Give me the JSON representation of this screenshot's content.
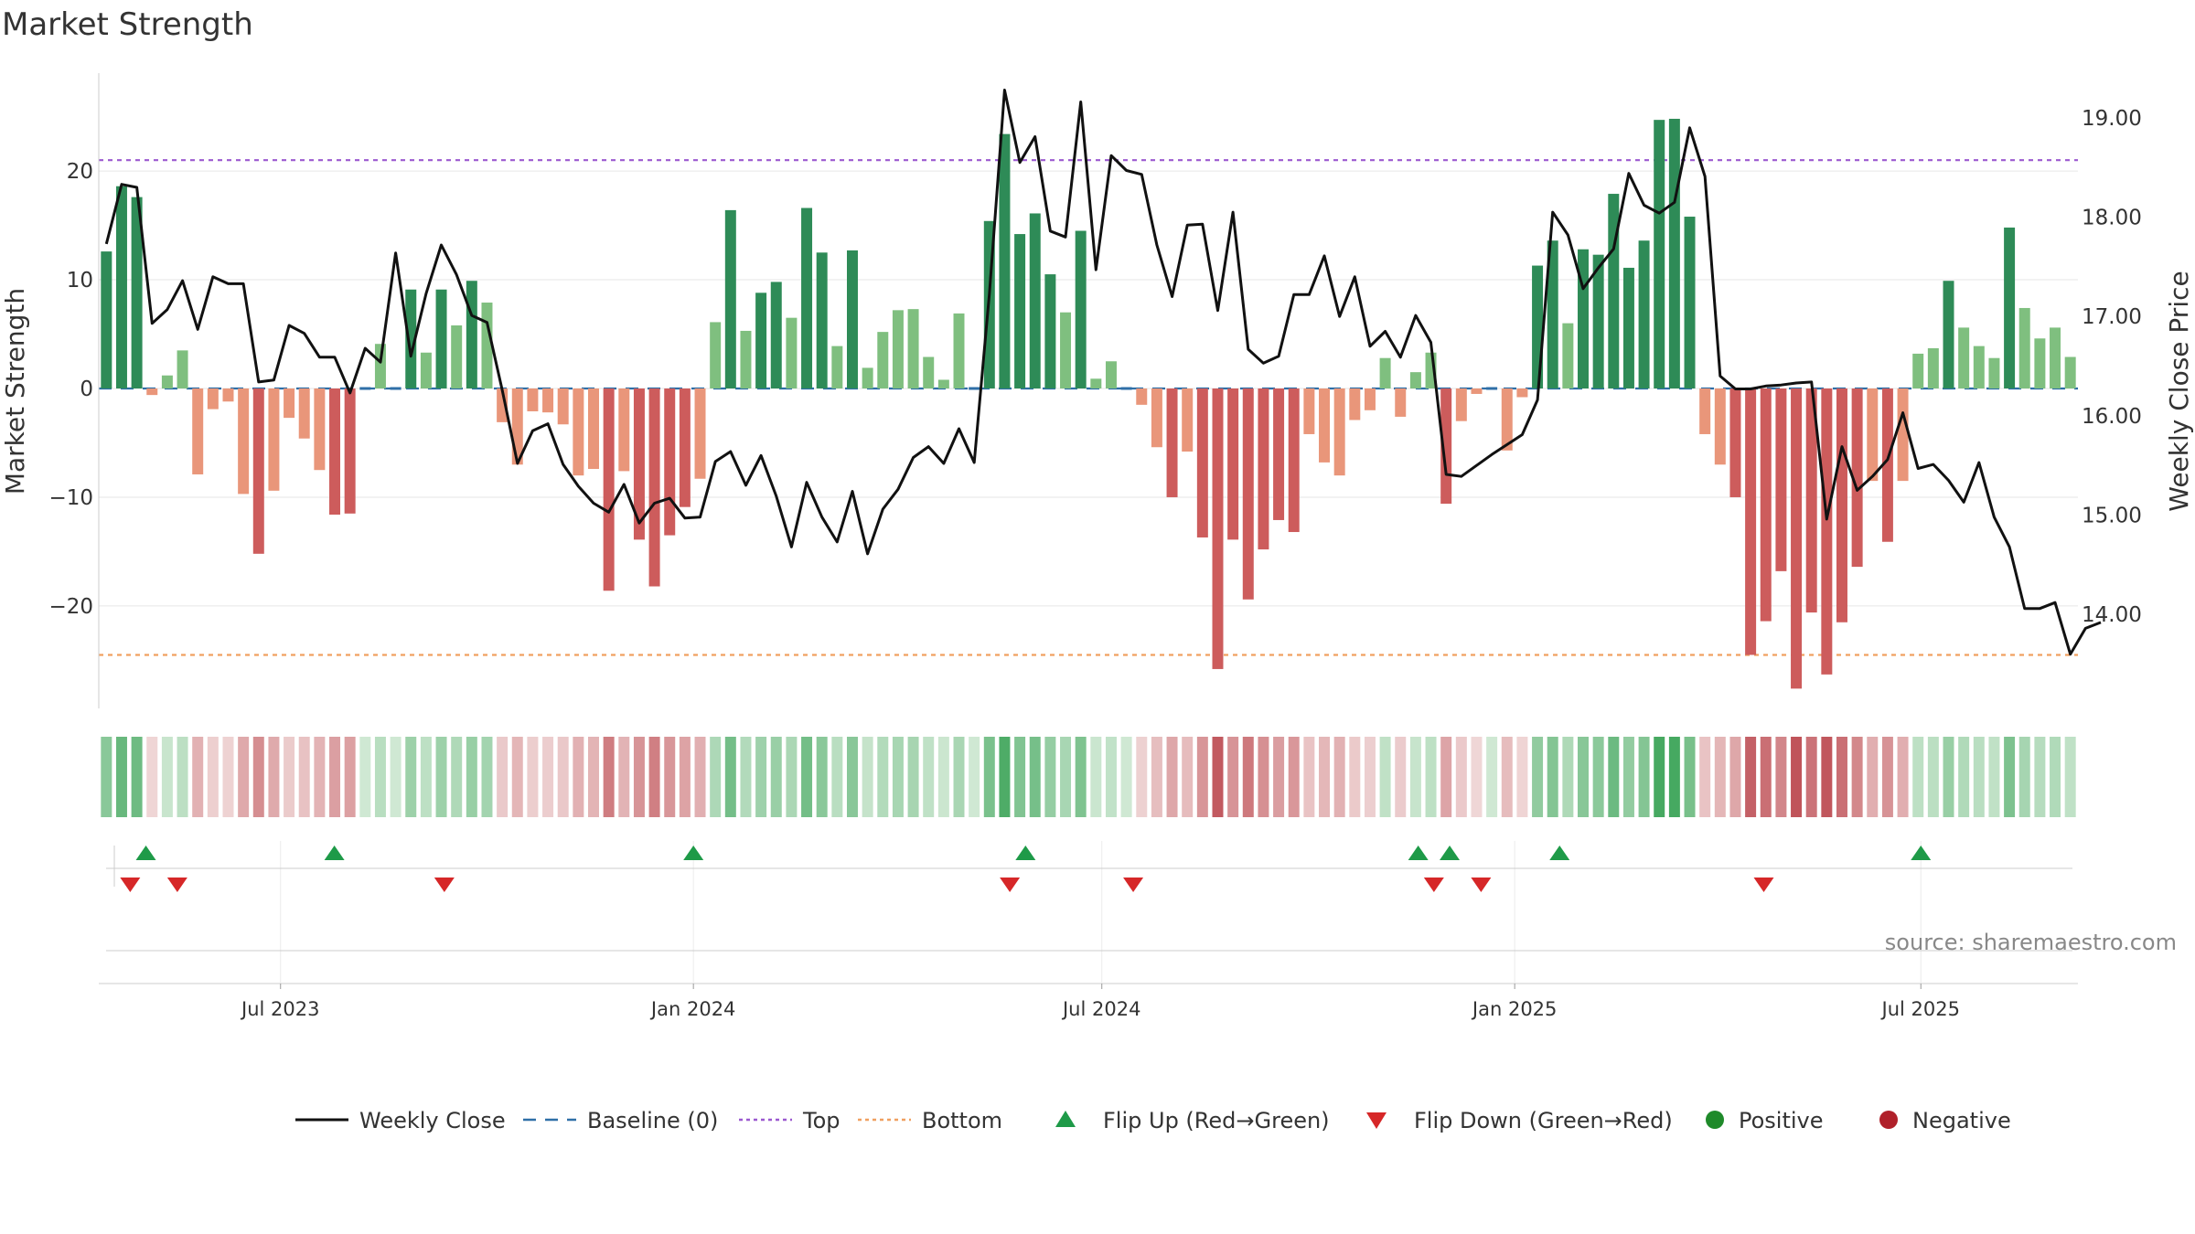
{
  "chart_data": {
    "type": "bar",
    "title": "Market Strength",
    "y_left_label": "Market Strength",
    "y_right_label": "Weekly Close Price",
    "y_left_range": [
      -29,
      29
    ],
    "y_right_range": [
      13.1,
      19.45
    ],
    "y_left_ticks": [
      "20",
      "10",
      "0",
      "−10",
      "−20"
    ],
    "y_left_tick_values": [
      20,
      10,
      0,
      -10,
      -20
    ],
    "y_right_ticks": [
      "19.00",
      "18.00",
      "17.00",
      "16.00",
      "15.00",
      "14.00"
    ],
    "y_right_tick_values": [
      19,
      18,
      17,
      16,
      15,
      14
    ],
    "x_start_date": "2023-04-11",
    "x_end_date": "2025-09-09",
    "x_ticks": [
      {
        "label": "Jul 2023",
        "date": "2023-07-01"
      },
      {
        "label": "Jan 2024",
        "date": "2024-01-01"
      },
      {
        "label": "Jul 2024",
        "date": "2024-07-01"
      },
      {
        "label": "Jan 2025",
        "date": "2025-01-01"
      },
      {
        "label": "Jul 2025",
        "date": "2025-07-01"
      }
    ],
    "top_level": 21,
    "bottom_level": -24.5,
    "strength": [
      12.6,
      18.6,
      17.6,
      -0.6,
      1.2,
      3.5,
      -7.9,
      -1.9,
      -1.2,
      -9.7,
      -15.2,
      -9.4,
      -2.7,
      -4.6,
      -7.5,
      -11.6,
      -11.5,
      0.0,
      4.1,
      0.0,
      9.1,
      3.3,
      9.1,
      5.8,
      9.9,
      7.9,
      -3.1,
      -7.0,
      -2.1,
      -2.2,
      -3.3,
      -8.0,
      -7.4,
      -18.6,
      -7.6,
      -13.9,
      -18.2,
      -13.5,
      -10.9,
      -8.3,
      6.1,
      16.4,
      5.3,
      8.8,
      9.8,
      6.5,
      16.6,
      12.5,
      3.9,
      12.7,
      1.9,
      5.2,
      7.2,
      7.3,
      2.9,
      0.8,
      6.9,
      0.0,
      15.4,
      23.4,
      14.2,
      16.1,
      10.5,
      7.0,
      14.5,
      0.9,
      2.5,
      0.0,
      -1.5,
      -5.4,
      -10.0,
      -5.8,
      -13.7,
      -25.8,
      -13.9,
      -19.4,
      -14.8,
      -12.1,
      -13.2,
      -4.2,
      -6.8,
      -8.0,
      -2.9,
      -2.0,
      2.8,
      -2.6,
      1.5,
      3.3,
      -10.6,
      -3.0,
      -0.5,
      0.0,
      -5.7,
      -0.8,
      11.3,
      13.6,
      6.0,
      12.8,
      12.3,
      17.9,
      11.1,
      13.6,
      24.7,
      24.8,
      15.8,
      -4.2,
      -7.0,
      -10.0,
      -24.5,
      -21.4,
      -16.8,
      -27.6,
      -20.6,
      -26.3,
      -21.5,
      -16.4,
      -8.5,
      -14.1,
      -8.5,
      3.2,
      3.7,
      9.9,
      5.6,
      3.9,
      2.8,
      14.8,
      7.4,
      4.6,
      5.6,
      2.9
    ],
    "weekly_close": [
      17.73,
      18.33,
      18.3,
      16.93,
      17.07,
      17.36,
      16.87,
      17.4,
      17.33,
      17.33,
      16.34,
      16.36,
      16.91,
      16.83,
      16.59,
      16.59,
      16.23,
      16.68,
      16.54,
      17.64,
      16.6,
      17.23,
      17.72,
      17.42,
      17.01,
      16.94,
      16.26,
      15.52,
      15.85,
      15.92,
      15.51,
      15.29,
      15.12,
      15.03,
      15.31,
      14.92,
      15.12,
      15.17,
      14.97,
      14.98,
      15.54,
      15.64,
      15.3,
      15.6,
      15.19,
      14.68,
      15.33,
      14.98,
      14.73,
      15.24,
      14.61,
      15.06,
      15.26,
      15.58,
      15.69,
      15.52,
      15.87,
      15.53,
      17.23,
      19.28,
      18.55,
      18.81,
      17.86,
      17.8,
      19.16,
      17.47,
      18.62,
      18.47,
      18.43,
      17.72,
      17.2,
      17.92,
      17.93,
      17.06,
      18.05,
      16.67,
      16.53,
      16.6,
      17.22,
      17.22,
      17.61,
      17.0,
      17.4,
      16.7,
      16.85,
      16.59,
      17.01,
      16.74,
      15.41,
      15.39,
      15.5,
      15.61,
      15.71,
      15.81,
      16.16,
      18.05,
      17.82,
      17.28,
      17.49,
      17.68,
      18.44,
      18.12,
      18.04,
      18.15,
      18.9,
      18.41,
      16.4,
      16.27,
      16.27,
      16.3,
      16.31,
      16.33,
      16.34,
      14.96,
      15.69,
      15.25,
      15.39,
      15.56,
      16.03,
      15.47,
      15.51,
      15.35,
      15.13,
      15.53,
      14.98,
      14.68,
      14.06,
      14.06,
      14.12,
      13.6,
      13.86,
      13.92
    ],
    "flip_up_dates": [
      "2023-05-02",
      "2023-07-25",
      "2024-01-01",
      "2024-05-28",
      "2024-11-19",
      "2024-12-03",
      "2025-01-21",
      "2025-07-01"
    ],
    "flip_down_dates": [
      "2023-04-25",
      "2023-05-16",
      "2023-09-12",
      "2024-05-21",
      "2024-07-15",
      "2024-11-26",
      "2024-12-17",
      "2025-04-22"
    ],
    "source_text": "source: sharemaestro.com",
    "legend": [
      {
        "label": "Weekly Close",
        "marker": "solid-line",
        "color": "#111111"
      },
      {
        "label": "Baseline (0)",
        "marker": "dashed-line",
        "color": "#2f6fa7"
      },
      {
        "label": "Top",
        "marker": "dotted-line",
        "color": "#9b59d0"
      },
      {
        "label": "Bottom",
        "marker": "dotted-line",
        "color": "#f0a060"
      },
      {
        "label": "Flip Up (Red→Green)",
        "marker": "triangle-up",
        "color": "#1e9a48"
      },
      {
        "label": "Flip Down (Green→Red)",
        "marker": "triangle-down",
        "color": "#d62728"
      },
      {
        "label": "Positive",
        "marker": "circle",
        "color": "#1f8a2a"
      },
      {
        "label": "Negative",
        "marker": "circle",
        "color": "#b0202a"
      }
    ],
    "colors": {
      "pos_strong": "#2e8b57",
      "pos_weak": "#7fbf7f",
      "neg_strong": "#cd5c5c",
      "neg_weak": "#e9967a",
      "baseline": "#2f6fa7",
      "top": "#9b59d0",
      "bottom": "#f0a060",
      "close": "#111111"
    }
  }
}
